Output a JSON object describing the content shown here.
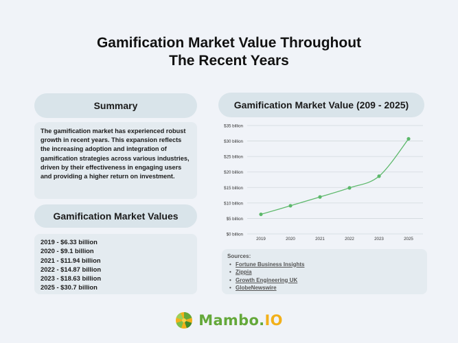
{
  "title": {
    "line1": "Gamification Market Value Throughout",
    "line2": "The Recent Years"
  },
  "summary": {
    "heading": "Summary",
    "text": "The gamification market has experienced robust growth in recent years. This expansion reflects the increasing adoption and integration of gamification strategies across various industries, driven by their effectiveness in engaging users and providing a higher return on investment."
  },
  "market_values": {
    "heading": "Gamification Market Values",
    "items": [
      "2019 - $6.33 billion",
      "2020 - $9.1 billion",
      "2021 - $11.94 billion",
      "2022 - $14.87 billion",
      "2023 - $18.63 billion",
      "2025 - $30.7 billion"
    ]
  },
  "chart_heading": "Gamification Market Value (209 - 2025)",
  "chart_data": {
    "type": "line",
    "categories": [
      "2019",
      "2020",
      "2021",
      "2022",
      "2023",
      "2025"
    ],
    "values": [
      6.33,
      9.1,
      11.94,
      14.87,
      18.63,
      30.7
    ],
    "ylim": [
      0,
      35
    ],
    "yticks": [
      0,
      5,
      10,
      15,
      20,
      25,
      30,
      35
    ],
    "ytick_labels": [
      "$0 billion",
      "$5 billion",
      "$10 billion",
      "$15 billion",
      "$20 billion",
      "$25 billion",
      "$30 billion",
      "$35 billion"
    ],
    "grid": true,
    "line_color": "#5cb86a",
    "grid_color": "#d2d8dd"
  },
  "sources": {
    "heading": "Sources:",
    "items": [
      "Fortune Business Insights",
      "Zippia",
      "Growth Engineering UK",
      "GlobeNewswire"
    ]
  },
  "brand": {
    "name_main": "Mambo.",
    "name_accent": "IO",
    "primary_color": "#64a83a",
    "accent_color": "#f2b01a"
  }
}
